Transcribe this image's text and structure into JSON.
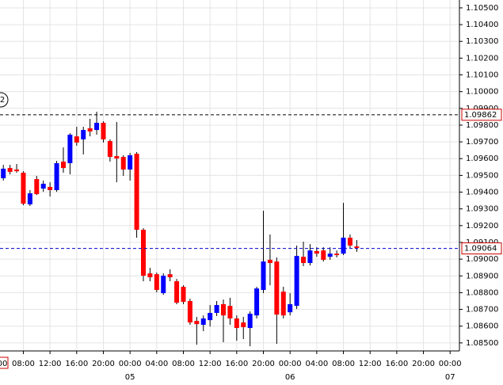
{
  "chart_data": {
    "type": "candlestick",
    "up_color": "#0000ff",
    "down_color": "#ff0000",
    "grid": true,
    "annotation": "2",
    "cursor_label": "00",
    "x": [
      5,
      6,
      7,
      8,
      9,
      10,
      11,
      12,
      13,
      14,
      15,
      16,
      17,
      18,
      19,
      20,
      21,
      22,
      23,
      24,
      25,
      26,
      27,
      28,
      29,
      30,
      31,
      32,
      33,
      34,
      35,
      36,
      37,
      38,
      39,
      40,
      41,
      42,
      43,
      44,
      45,
      46,
      47,
      48,
      49,
      50,
      51,
      52,
      53,
      54,
      55,
      56,
      57,
      58
    ],
    "open": [
      1.09483,
      1.09544,
      1.09535,
      1.09516,
      1.09327,
      1.09478,
      1.09421,
      1.09431,
      1.09412,
      1.09582,
      1.09573,
      1.09733,
      1.09715,
      1.09781,
      1.09771,
      1.09814,
      1.09705,
      1.09615,
      1.0961,
      1.09535,
      1.09629,
      1.09175,
      1.08915,
      1.0891,
      1.08797,
      1.0891,
      1.08868,
      1.08835,
      1.0875,
      1.08631,
      1.08608,
      1.08636,
      1.08679,
      1.08731,
      1.08721,
      1.08646,
      1.08622,
      1.08589,
      1.08664,
      1.08816,
      1.08996,
      1.08986,
      1.08806,
      1.08683,
      1.08721,
      1.09014,
      1.08977,
      1.09048,
      1.09052,
      1.09014,
      1.09033,
      1.09033,
      1.09128,
      1.09076
    ],
    "high": [
      1.09563,
      1.09563,
      1.09568,
      1.09525,
      1.09412,
      1.09497,
      1.09469,
      1.09459,
      1.09587,
      1.09667,
      1.09752,
      1.0979,
      1.0979,
      1.09838,
      1.0988,
      1.09823,
      1.09715,
      1.09819,
      1.0962,
      1.09634,
      1.09639,
      1.09185,
      1.08948,
      1.0892,
      1.08915,
      1.08939,
      1.08882,
      1.08844,
      1.08764,
      1.08655,
      1.08664,
      1.08726,
      1.0875,
      1.08759,
      1.08769,
      1.08664,
      1.08655,
      1.08688,
      1.08835,
      1.09289,
      1.09147,
      1.0901,
      1.08835,
      1.08797,
      1.09081,
      1.09104,
      1.0909,
      1.09071,
      1.09071,
      1.09071,
      1.09052,
      1.09336,
      1.09147,
      1.09114
    ],
    "low": [
      1.09469,
      1.09506,
      1.09516,
      1.09322,
      1.09317,
      1.09383,
      1.09402,
      1.09374,
      1.09402,
      1.09516,
      1.09506,
      1.09677,
      1.09625,
      1.09733,
      1.09743,
      1.09696,
      1.09582,
      1.09459,
      1.09497,
      1.09469,
      1.09128,
      1.08868,
      1.08868,
      1.08802,
      1.08787,
      1.08868,
      1.08731,
      1.08731,
      1.08608,
      1.08489,
      1.0857,
      1.08598,
      1.0866,
      1.08504,
      1.08608,
      1.08513,
      1.08523,
      1.0848,
      1.08646,
      1.08797,
      1.08844,
      1.08494,
      1.08646,
      1.08664,
      1.08702,
      1.08958,
      1.08962,
      1.09014,
      1.08986,
      1.08996,
      1.0901,
      1.09024,
      1.09067,
      1.09043
    ],
    "close": [
      1.0954,
      1.09521,
      1.09525,
      1.09331,
      1.09393,
      1.09388,
      1.0945,
      1.09412,
      1.09573,
      1.09544,
      1.09743,
      1.09696,
      1.09771,
      1.09762,
      1.09814,
      1.09715,
      1.0961,
      1.09601,
      1.09535,
      1.0962,
      1.09175,
      1.08901,
      1.08892,
      1.08816,
      1.08901,
      1.08892,
      1.0874,
      1.08745,
      1.08622,
      1.08612,
      1.08646,
      1.08679,
      1.08726,
      1.08664,
      1.08646,
      1.08589,
      1.08594,
      1.08674,
      1.08825,
      1.08986,
      1.08977,
      1.08669,
      1.08664,
      1.08731,
      1.09019,
      1.08977,
      1.09052,
      1.09033,
      1.08996,
      1.09033,
      1.09024,
      1.09128,
      1.09081,
      1.09067
    ],
    "xlim": [
      4.5,
      73.4
    ],
    "ylim": [
      1.08452,
      1.10547
    ],
    "xticks": [
      {
        "value": 8,
        "label": "08:00"
      },
      {
        "value": 12,
        "label": "12:00"
      },
      {
        "value": 16,
        "label": "16:00"
      },
      {
        "value": 20,
        "label": "20:00"
      },
      {
        "value": 24,
        "label": "00:00"
      },
      {
        "value": 28,
        "label": "04:00"
      },
      {
        "value": 32,
        "label": "08:00"
      },
      {
        "value": 36,
        "label": "12:00"
      },
      {
        "value": 40,
        "label": "16:00"
      },
      {
        "value": 44,
        "label": "20:00"
      },
      {
        "value": 48,
        "label": "00:00"
      },
      {
        "value": 52,
        "label": "04:00"
      },
      {
        "value": 56,
        "label": "08:00"
      },
      {
        "value": 60,
        "label": "12:00"
      },
      {
        "value": 64,
        "label": "16:00"
      },
      {
        "value": 68,
        "label": "20:00"
      },
      {
        "value": 72,
        "label": "00:00"
      }
    ],
    "day_labels": [
      {
        "value": 24,
        "label": "05"
      },
      {
        "value": 48,
        "label": "06"
      },
      {
        "value": 72,
        "label": "07"
      }
    ],
    "yticks": [
      {
        "value": 1.085,
        "label": "1.08500"
      },
      {
        "value": 1.086,
        "label": "1.08600"
      },
      {
        "value": 1.087,
        "label": "1.08700"
      },
      {
        "value": 1.088,
        "label": "1.08800"
      },
      {
        "value": 1.089,
        "label": "1.08900"
      },
      {
        "value": 1.09,
        "label": "1.09000"
      },
      {
        "value": 1.091,
        "label": "1.09100"
      },
      {
        "value": 1.092,
        "label": "1.09200"
      },
      {
        "value": 1.093,
        "label": "1.09300"
      },
      {
        "value": 1.094,
        "label": "1.09400"
      },
      {
        "value": 1.095,
        "label": "1.09500"
      },
      {
        "value": 1.096,
        "label": "1.09600"
      },
      {
        "value": 1.097,
        "label": "1.09700"
      },
      {
        "value": 1.098,
        "label": "1.09800"
      },
      {
        "value": 1.099,
        "label": "1.09900"
      },
      {
        "value": 1.1,
        "label": "1.10000"
      },
      {
        "value": 1.101,
        "label": "1.10100"
      },
      {
        "value": 1.102,
        "label": "1.10200"
      },
      {
        "value": 1.103,
        "label": "1.10300"
      },
      {
        "value": 1.104,
        "label": "1.10400"
      },
      {
        "value": 1.105,
        "label": "1.10500"
      }
    ],
    "levels": [
      {
        "value": 1.09862,
        "color": "#000000"
      },
      {
        "value": 1.09064,
        "color": "#0000cc"
      }
    ],
    "level_box_color": "#cc0000"
  }
}
